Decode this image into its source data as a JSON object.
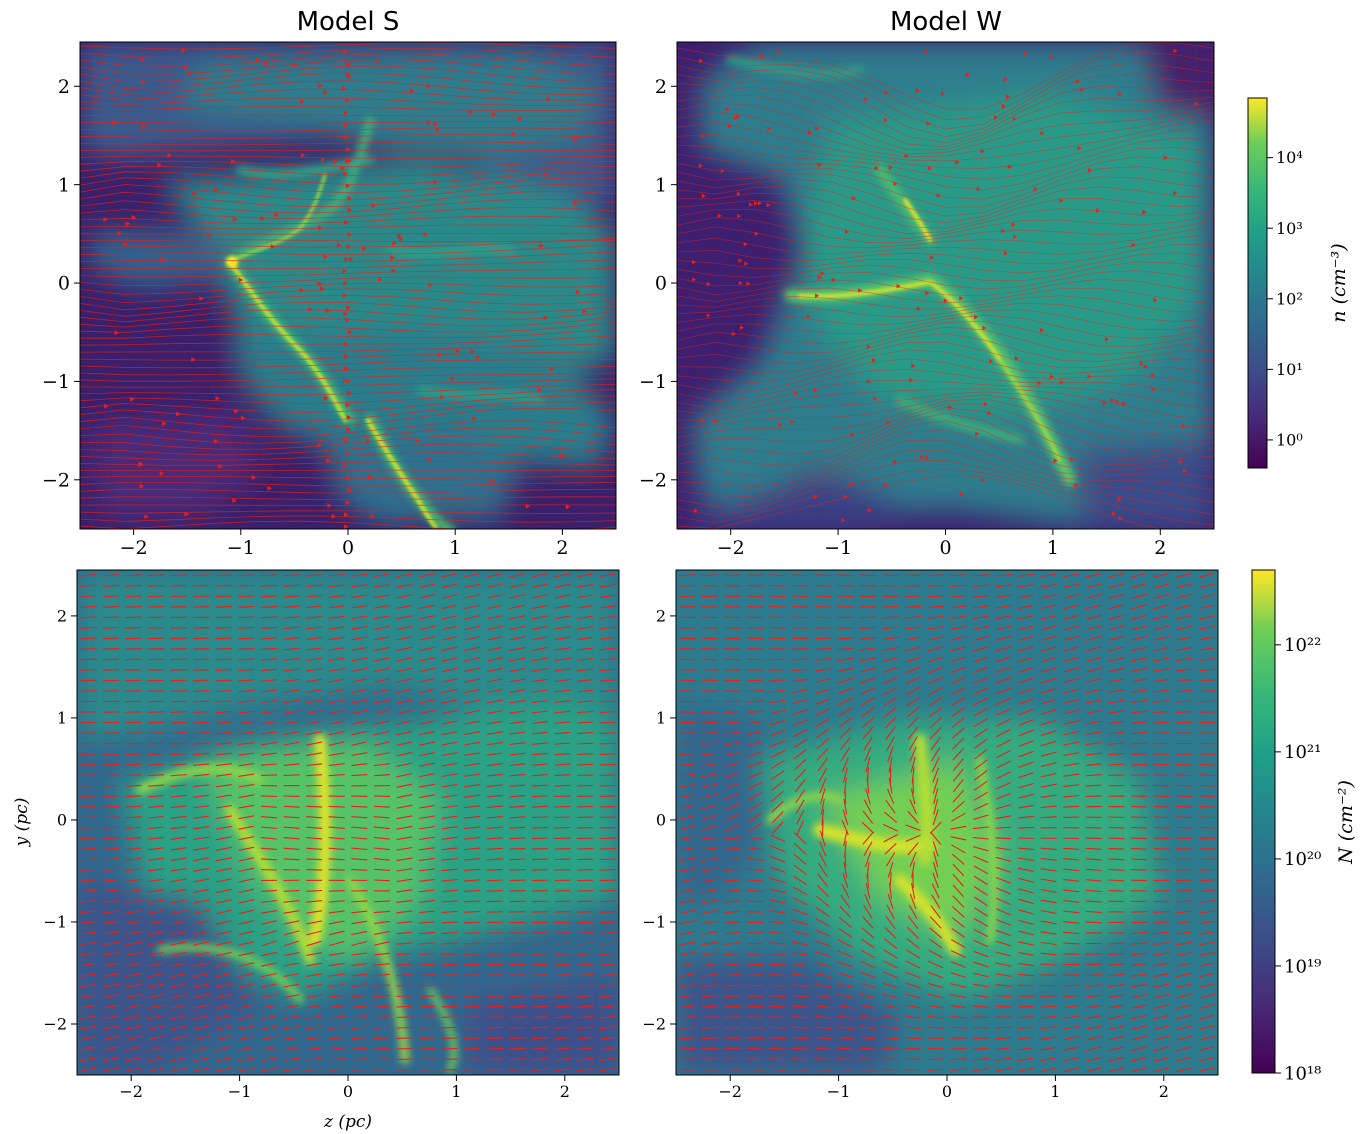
{
  "figure": {
    "panels": [
      {
        "id": "top-left",
        "title": "Model S",
        "field": "density-slice",
        "overlay": "streamlines"
      },
      {
        "id": "top-right",
        "title": "Model W",
        "field": "density-slice",
        "overlay": "streamlines"
      },
      {
        "id": "bottom-left",
        "title": "",
        "field": "column-density",
        "overlay": "polarization-segments"
      },
      {
        "id": "bottom-right",
        "title": "",
        "field": "column-density",
        "overlay": "polarization-segments"
      }
    ],
    "xlabel": "z (pc)",
    "ylabel": "y (pc)",
    "colorbar_top": {
      "label": "n (cm⁻³)",
      "scale": "log",
      "range": [
        0.4,
        70000
      ],
      "tick_labels": [
        "10⁰",
        "10¹",
        "10²",
        "10³",
        "10⁴"
      ]
    },
    "colorbar_bottom": {
      "label": "N (cm⁻²)",
      "scale": "log",
      "range": [
        1e+18,
        5e+22
      ],
      "tick_labels": [
        "10¹⁸",
        "10¹⁹",
        "10²⁰",
        "10²¹",
        "10²²"
      ]
    },
    "colormap": "viridis",
    "overlay_color": "#e8201a"
  },
  "chart_data": [
    {
      "type": "heatmap",
      "title": "Model S",
      "xlabel": "",
      "ylabel": "",
      "xlim": [
        -2.5,
        2.5
      ],
      "ylim": [
        -2.5,
        2.45
      ],
      "xticks": [
        -2,
        -1,
        0,
        1,
        2
      ],
      "xtick_labels": [
        "−2",
        "−1",
        "0",
        "1",
        "2"
      ],
      "yticks": [
        -2,
        -1,
        0,
        1,
        2
      ],
      "ytick_labels": [
        "−2",
        "−1",
        "0",
        "1",
        "2"
      ],
      "colorscale": "log n (cm⁻³)",
      "structures": [
        {
          "name": "filament-main",
          "points": [
            [
              -1.1,
              0.2
            ],
            [
              -0.9,
              -0.1
            ],
            [
              -0.6,
              -0.5
            ],
            [
              -0.3,
              -0.9
            ],
            [
              -0.1,
              -1.2
            ]
          ]
        },
        {
          "name": "filament-lower",
          "points": [
            [
              0.1,
              -1.0
            ],
            [
              0.3,
              -1.5
            ],
            [
              0.5,
              -2.0
            ],
            [
              0.7,
              -2.4
            ]
          ]
        },
        {
          "name": "filament-upper",
          "points": [
            [
              -1.1,
              0.2
            ],
            [
              -0.7,
              0.3
            ],
            [
              -0.3,
              0.7
            ],
            [
              -0.1,
              1.2
            ]
          ]
        }
      ],
      "overlay": {
        "kind": "streamlines",
        "direction": "left-to-right, mostly horizontal"
      }
    },
    {
      "type": "heatmap",
      "title": "Model W",
      "xlabel": "",
      "ylabel": "",
      "xlim": [
        -2.5,
        2.5
      ],
      "ylim": [
        -2.5,
        2.45
      ],
      "xticks": [
        -2,
        -1,
        0,
        1,
        2
      ],
      "xtick_labels": [
        "−2",
        "−1",
        "0",
        "1",
        "2"
      ],
      "yticks": [
        -2,
        -1,
        0,
        1,
        2
      ],
      "ytick_labels": [
        "−2",
        "−1",
        "0",
        "1",
        "2"
      ],
      "colorscale": "log n (cm⁻³)",
      "structures": [
        {
          "name": "filament-main",
          "points": [
            [
              -1.2,
              -0.1
            ],
            [
              -0.6,
              -0.15
            ],
            [
              -0.1,
              0.1
            ],
            [
              0.3,
              -0.5
            ],
            [
              0.7,
              -1.2
            ],
            [
              1.0,
              -1.8
            ]
          ]
        },
        {
          "name": "filament-upper",
          "points": [
            [
              -0.5,
              1.0
            ],
            [
              -0.3,
              0.6
            ],
            [
              -0.1,
              0.4
            ]
          ]
        }
      ],
      "overlay": {
        "kind": "streamlines",
        "direction": "tangled, converging toward center"
      }
    },
    {
      "type": "heatmap",
      "title": "",
      "xlabel": "z (pc)",
      "ylabel": "y (pc)",
      "xlim": [
        -2.5,
        2.5
      ],
      "ylim": [
        -2.5,
        2.45
      ],
      "xticks": [
        -2,
        -1,
        0,
        1,
        2
      ],
      "xtick_labels": [
        "−2",
        "−1",
        "0",
        "1",
        "2"
      ],
      "yticks": [
        -2,
        -1,
        0,
        1,
        2
      ],
      "ytick_labels": [
        "−2",
        "−1",
        "0",
        "1",
        "2"
      ],
      "colorscale": "log N (cm⁻²)",
      "overlay": {
        "kind": "polarization segments",
        "orientation": "mostly horizontal, slightly tilted"
      }
    },
    {
      "type": "heatmap",
      "title": "",
      "xlabel": "",
      "ylabel": "",
      "xlim": [
        -2.5,
        2.5
      ],
      "ylim": [
        -2.5,
        2.45
      ],
      "xticks": [
        -2,
        -1,
        0,
        1,
        2
      ],
      "xtick_labels": [
        "−2",
        "−1",
        "0",
        "1",
        "2"
      ],
      "yticks": [
        -2,
        -1,
        0,
        1,
        2
      ],
      "ytick_labels": [
        "−2",
        "−1",
        "0",
        "1",
        "2"
      ],
      "colorscale": "log N (cm⁻²)",
      "overlay": {
        "kind": "polarization segments",
        "orientation": "mixed, radial near center"
      }
    }
  ]
}
